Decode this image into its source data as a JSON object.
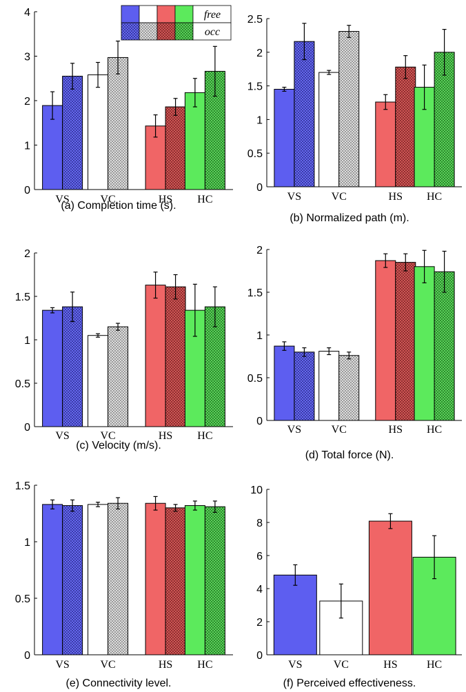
{
  "colors": {
    "VS": "#5d5ef0",
    "VC": "#ffffff",
    "HS": "#f06566",
    "HC": "#5cea5c"
  },
  "legend": {
    "free": "free",
    "occ": "occ"
  },
  "chart_data": [
    {
      "type": "bar",
      "caption": "(a) Completion time (s).",
      "categories": [
        "VS",
        "VC",
        "HS",
        "HC"
      ],
      "series": [
        {
          "name": "free",
          "values": [
            1.89,
            2.58,
            1.43,
            2.18
          ],
          "errors": [
            0.31,
            0.28,
            0.25,
            0.32
          ]
        },
        {
          "name": "occ",
          "values": [
            2.55,
            2.97,
            1.86,
            2.66
          ],
          "errors": [
            0.29,
            0.37,
            0.19,
            0.56
          ]
        }
      ],
      "ylim": [
        0,
        4
      ],
      "yticks": [
        "0",
        "1",
        "2",
        "3",
        "4"
      ],
      "grid": false,
      "legend": "top-right"
    },
    {
      "type": "bar",
      "caption": "(b) Normalized path (m).",
      "categories": [
        "VS",
        "VC",
        "HS",
        "HC"
      ],
      "series": [
        {
          "name": "free",
          "values": [
            1.45,
            1.7,
            1.26,
            1.48
          ],
          "errors": [
            0.03,
            0.03,
            0.11,
            0.33
          ]
        },
        {
          "name": "occ",
          "values": [
            2.16,
            2.31,
            1.78,
            2.0
          ],
          "errors": [
            0.27,
            0.09,
            0.17,
            0.34
          ]
        }
      ],
      "ylim": [
        0,
        2.5
      ],
      "yticks": [
        "0",
        "0.5",
        "1",
        "1.5",
        "2",
        "2.5"
      ],
      "grid": false
    },
    {
      "type": "bar",
      "caption": "(c) Velocity (m/s).",
      "categories": [
        "VS",
        "VC",
        "HS",
        "HC"
      ],
      "series": [
        {
          "name": "free",
          "values": [
            1.34,
            1.05,
            1.63,
            1.34
          ],
          "errors": [
            0.03,
            0.02,
            0.15,
            0.3
          ]
        },
        {
          "name": "occ",
          "values": [
            1.38,
            1.15,
            1.61,
            1.38
          ],
          "errors": [
            0.17,
            0.04,
            0.14,
            0.23
          ]
        }
      ],
      "ylim": [
        0,
        2
      ],
      "yticks": [
        "0",
        "0.5",
        "1",
        "1.5",
        "2"
      ],
      "grid": false
    },
    {
      "type": "bar",
      "caption": "(d) Total force (N).",
      "categories": [
        "VS",
        "VC",
        "HS",
        "HC"
      ],
      "series": [
        {
          "name": "free",
          "values": [
            0.87,
            0.81,
            1.87,
            1.8
          ],
          "errors": [
            0.05,
            0.04,
            0.08,
            0.19
          ]
        },
        {
          "name": "occ",
          "values": [
            0.8,
            0.76,
            1.85,
            1.74
          ],
          "errors": [
            0.05,
            0.04,
            0.1,
            0.24
          ]
        }
      ],
      "ylim": [
        0,
        2
      ],
      "yticks": [
        "0",
        "0.5",
        "1",
        "1.5",
        "2"
      ],
      "grid": false
    },
    {
      "type": "bar",
      "caption": "(e) Connectivity level.",
      "categories": [
        "VS",
        "VC",
        "HS",
        "HC"
      ],
      "series": [
        {
          "name": "free",
          "values": [
            1.33,
            1.33,
            1.34,
            1.32
          ],
          "errors": [
            0.04,
            0.02,
            0.06,
            0.04
          ]
        },
        {
          "name": "occ",
          "values": [
            1.32,
            1.34,
            1.3,
            1.31
          ],
          "errors": [
            0.05,
            0.05,
            0.03,
            0.05
          ]
        }
      ],
      "ylim": [
        0,
        1.5
      ],
      "yticks": [
        "0",
        "0.5",
        "1",
        "1.5"
      ],
      "grid": false
    },
    {
      "type": "bar",
      "caption": "(f) Perceived effectiveness.",
      "categories": [
        "VS",
        "VC",
        "HS",
        "HC"
      ],
      "series": [
        {
          "values": [
            4.82,
            3.25,
            8.08,
            5.9
          ],
          "errors": [
            0.62,
            1.03,
            0.45,
            1.3
          ]
        }
      ],
      "ylim": [
        0,
        10
      ],
      "yticks": [
        "0",
        "2",
        "4",
        "6",
        "8",
        "10"
      ],
      "grid": false
    }
  ]
}
